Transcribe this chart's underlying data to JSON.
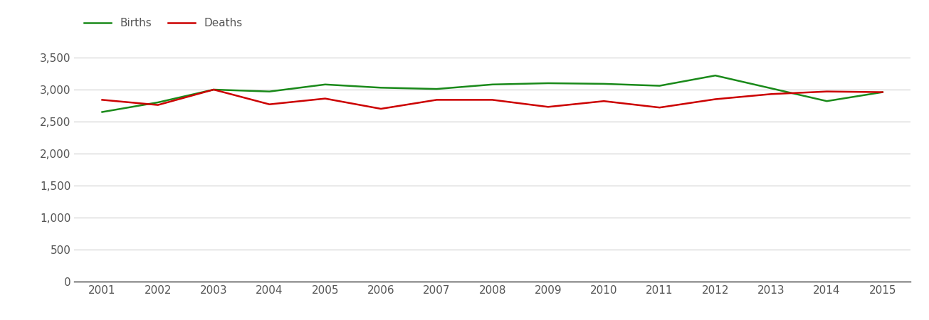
{
  "years": [
    2001,
    2002,
    2003,
    2004,
    2005,
    2006,
    2007,
    2008,
    2009,
    2010,
    2011,
    2012,
    2013,
    2014,
    2015
  ],
  "births": [
    2650,
    2800,
    3000,
    2970,
    3080,
    3030,
    3010,
    3080,
    3100,
    3090,
    3060,
    3220,
    3020,
    2820,
    2960
  ],
  "deaths": [
    2840,
    2760,
    3000,
    2770,
    2860,
    2700,
    2840,
    2840,
    2730,
    2820,
    2720,
    2850,
    2930,
    2970,
    2960
  ],
  "births_color": "#1a8a1a",
  "deaths_color": "#cc0000",
  "line_width": 1.8,
  "background_color": "#ffffff",
  "grid_color": "#cccccc",
  "ylim": [
    0,
    3500
  ],
  "yticks": [
    0,
    500,
    1000,
    1500,
    2000,
    2500,
    3000,
    3500
  ],
  "legend_labels": [
    "Births",
    "Deaths"
  ],
  "legend_fontsize": 11,
  "tick_fontsize": 11,
  "tick_color": "#555555",
  "spine_color": "#333333",
  "figure_width": 13.05,
  "figure_height": 4.5
}
